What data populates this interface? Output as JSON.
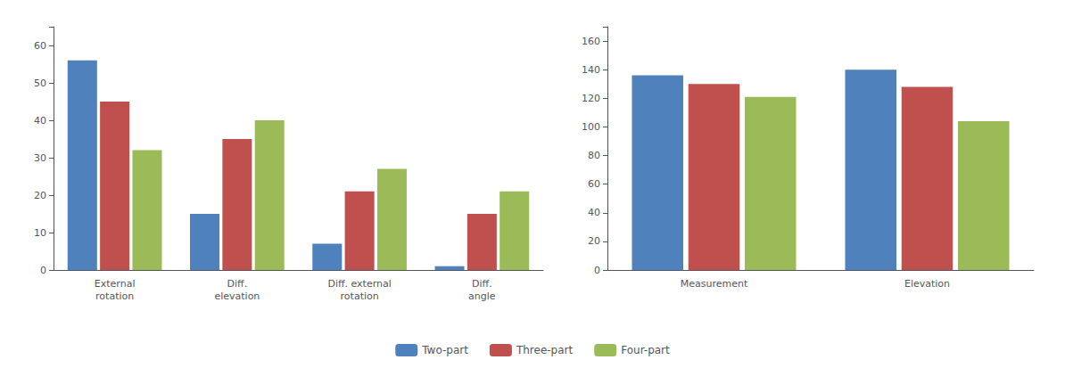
{
  "chart_data": [
    {
      "type": "bar",
      "categories": [
        "External\nrotation",
        "Diff.\nelevation",
        "Diff. external\nrotation",
        "Diff.\nangle"
      ],
      "series": [
        {
          "name": "Two-part",
          "color": "#4f81bd",
          "values": [
            56,
            15,
            7,
            1
          ]
        },
        {
          "name": "Three-part",
          "color": "#c0504d",
          "values": [
            45,
            35,
            21,
            15
          ]
        },
        {
          "name": "Four-part",
          "color": "#9bbb59",
          "values": [
            32,
            40,
            27,
            21
          ]
        }
      ],
      "ylim": [
        0,
        65
      ],
      "yticks": [
        0,
        10,
        20,
        30,
        40,
        50,
        60
      ],
      "grid": false,
      "legend": "bottom"
    },
    {
      "type": "bar",
      "categories": [
        "Measurement",
        "Elevation"
      ],
      "series": [
        {
          "name": "Two-part",
          "color": "#4f81bd",
          "values": [
            136,
            140
          ]
        },
        {
          "name": "Three-part",
          "color": "#c0504d",
          "values": [
            130,
            128
          ]
        },
        {
          "name": "Four-part",
          "color": "#9bbb59",
          "values": [
            121,
            104
          ]
        }
      ],
      "ylim": [
        0,
        170
      ],
      "yticks": [
        0,
        20,
        40,
        60,
        80,
        100,
        120,
        140,
        160
      ],
      "grid": false,
      "legend": "bottom"
    }
  ]
}
